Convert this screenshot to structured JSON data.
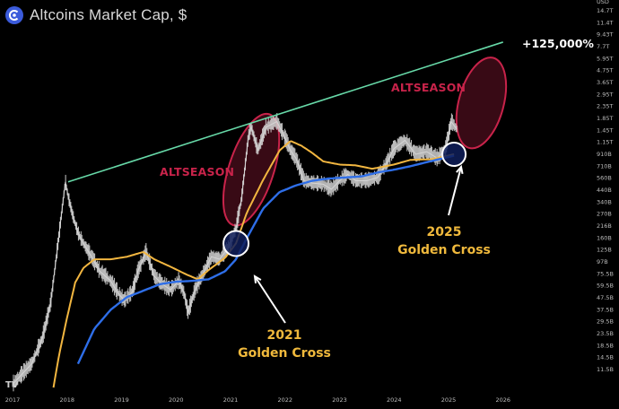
{
  "header": {
    "title": "Altcoins Market Cap, $",
    "logo_icon": "coin-logo-icon",
    "watermark": "TV"
  },
  "colors": {
    "background": "#000000",
    "trendline": "#67d9a8",
    "ma_short": "#f2b640",
    "ma_long": "#2e6ee8",
    "candles": "#d6d6d6",
    "altseason": "#c8234a",
    "golden_label": "#f0b93c"
  },
  "annotations": {
    "altseason_2021": "ALTSEASON",
    "altseason_2025": "ALTSEASON",
    "cross_2021_year": "2021",
    "cross_2021_label": "Golden Cross",
    "cross_2025_year": "2025",
    "cross_2025_label": "Golden Cross",
    "gain_label": "+125,000%"
  },
  "chart_data": {
    "type": "line",
    "title": "Altcoins Market Cap, $",
    "currency": "USD",
    "y_scale": "log",
    "ylim": [
      7.0,
      15000
    ],
    "xlim": [
      2017.0,
      2026.35
    ],
    "grid": false,
    "x_ticks": [
      "2017",
      "2018",
      "2019",
      "2020",
      "2021",
      "2022",
      "2023",
      "2024",
      "2025",
      "2026"
    ],
    "y_ticks": [
      "14.7T",
      "11.4T",
      "9.43T",
      "7.7T",
      "5.95T",
      "4.75T",
      "3.65T",
      "2.95T",
      "2.35T",
      "1.85T",
      "1.45T",
      "1.15T",
      "910B",
      "710B",
      "560B",
      "440B",
      "340B",
      "270B",
      "216B",
      "160B",
      "125B",
      "97B",
      "75.5B",
      "59.5B",
      "47.5B",
      "37.5B",
      "29.5B",
      "23.5B",
      "18.5B",
      "14.5B",
      "11.5B"
    ],
    "series": [
      {
        "name": "",
        "x": [
          2017.0,
          2017.35,
          2017.55,
          2017.7,
          2017.85,
          2017.97,
          2018.02,
          2018.1,
          2018.2,
          2018.3,
          2018.45,
          2018.6,
          2018.8,
          2018.92,
          2019.05,
          2019.2,
          2019.3,
          2019.45,
          2019.6,
          2019.75,
          2019.9,
          2020.05,
          2020.15,
          2020.22,
          2020.35,
          2020.5,
          2020.65,
          2020.8,
          2020.95,
          2021.1,
          2021.2,
          2021.33,
          2021.38,
          2021.5,
          2021.65,
          2021.85,
          2021.98,
          2022.1,
          2022.2,
          2022.35,
          2022.5,
          2022.7,
          2022.85,
          2023.0,
          2023.15,
          2023.3,
          2023.5,
          2023.7,
          2023.85,
          2024.0,
          2024.2,
          2024.4,
          2024.6,
          2024.8,
          2024.95,
          2025.05,
          2025.15
        ],
        "y": [
          8,
          12,
          20,
          40,
          150,
          440,
          330,
          230,
          160,
          130,
          100,
          75,
          62,
          50,
          42,
          50,
          75,
          110,
          68,
          58,
          52,
          62,
          48,
          33,
          52,
          72,
          100,
          95,
          118,
          175,
          310,
          1100,
          1300,
          820,
          1300,
          1450,
          1100,
          820,
          700,
          450,
          430,
          420,
          380,
          450,
          510,
          450,
          450,
          480,
          620,
          850,
          1000,
          760,
          800,
          700,
          860,
          1450,
          1250
        ]
      },
      {
        "name": "",
        "x": [
          2017.75,
          2017.85,
          2018.0,
          2018.15,
          2018.3,
          2018.5,
          2018.8,
          2019.1,
          2019.4,
          2019.6,
          2019.9,
          2020.2,
          2020.4,
          2020.6,
          2020.9,
          2021.1,
          2021.3,
          2021.6,
          2021.9,
          2022.1,
          2022.3,
          2022.5,
          2022.7,
          2023.0,
          2023.3,
          2023.6,
          2024.0,
          2024.3,
          2024.7,
          2025.1
        ],
        "y": [
          7.5,
          14,
          30,
          60,
          80,
          95,
          95,
          100,
          110,
          95,
          82,
          70,
          64,
          77,
          98,
          130,
          240,
          460,
          820,
          990,
          900,
          780,
          660,
          620,
          610,
          570,
          620,
          680,
          690,
          760
        ]
      },
      {
        "name": "",
        "x": [
          2018.2,
          2018.5,
          2018.8,
          2019.1,
          2019.4,
          2019.7,
          2020.0,
          2020.3,
          2020.6,
          2020.9,
          2021.1,
          2021.3,
          2021.6,
          2021.9,
          2022.2,
          2022.5,
          2022.8,
          2023.1,
          2023.4,
          2023.7,
          2024.0,
          2024.3,
          2024.6,
          2025.1
        ],
        "y": [
          12,
          24,
          35,
          45,
          51,
          58,
          61,
          62,
          64,
          75,
          95,
          145,
          260,
          360,
          410,
          450,
          470,
          480,
          490,
          530,
          560,
          600,
          650,
          740
        ]
      },
      {
        "name": "",
        "x": [
          2018.02,
          2026.0
        ],
        "y": [
          440,
          7000
        ]
      }
    ]
  }
}
